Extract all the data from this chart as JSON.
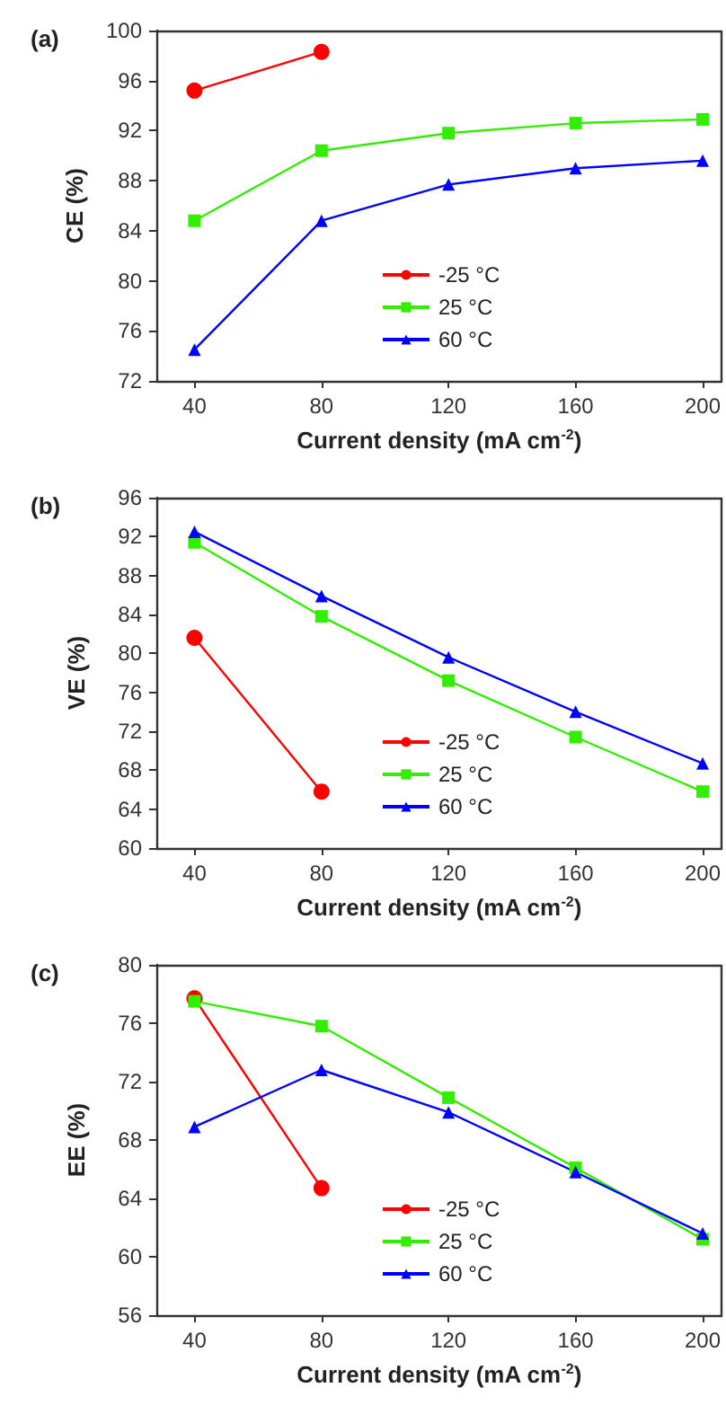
{
  "chart_data": [
    {
      "type": "line",
      "title": "(a)",
      "xlabel": "Current density (mA cm$^{-2}$)",
      "ylabel": "CE (%)",
      "x": [
        40,
        80,
        120,
        160,
        200
      ],
      "xlim": [
        28,
        206
      ],
      "xticks": [
        40,
        80,
        120,
        160,
        200
      ],
      "ylim": [
        72,
        100
      ],
      "yticks": [
        72,
        76,
        80,
        84,
        88,
        92,
        96,
        100
      ],
      "grid": false,
      "legend": "center",
      "line_style": "solid",
      "series": [
        {
          "name": "-25 °C",
          "color": "#ff0000",
          "marker": "circle",
          "values": [
            95.2,
            98.3,
            null,
            null,
            null
          ]
        },
        {
          "name": "25 °C",
          "color": "#33ee00",
          "marker": "square",
          "values": [
            84.8,
            90.4,
            91.8,
            92.6,
            92.9
          ]
        },
        {
          "name": "60 °C",
          "color": "#0000ff",
          "marker": "triangle",
          "values": [
            74.5,
            84.8,
            87.7,
            89.0,
            89.6
          ]
        }
      ]
    },
    {
      "type": "line",
      "title": "(b)",
      "xlabel": "Current density (mA cm$^{-2}$)",
      "ylabel": "VE (%)",
      "x": [
        40,
        80,
        120,
        160,
        200
      ],
      "xlim": [
        28,
        206
      ],
      "xticks": [
        40,
        80,
        120,
        160,
        200
      ],
      "ylim": [
        60,
        96
      ],
      "yticks": [
        60,
        64,
        68,
        72,
        76,
        80,
        84,
        88,
        92,
        96
      ],
      "grid": false,
      "legend": "center",
      "line_style": "solid",
      "series": [
        {
          "name": "-25 °C",
          "color": "#ff0000",
          "marker": "circle",
          "values": [
            81.6,
            65.8,
            null,
            null,
            null
          ]
        },
        {
          "name": "25 °C",
          "color": "#33ee00",
          "marker": "square",
          "values": [
            91.4,
            83.8,
            77.2,
            71.4,
            65.8
          ]
        },
        {
          "name": "60 °C",
          "color": "#0000ff",
          "marker": "triangle",
          "values": [
            92.5,
            85.9,
            79.6,
            74.0,
            68.7
          ]
        }
      ]
    },
    {
      "type": "line",
      "title": "(c)",
      "xlabel": "Current density (mA cm$^{-2}$)",
      "ylabel": "EE (%)",
      "x": [
        40,
        80,
        120,
        160,
        200
      ],
      "xlim": [
        28,
        206
      ],
      "xticks": [
        40,
        80,
        120,
        160,
        200
      ],
      "ylim": [
        56,
        80
      ],
      "yticks": [
        56,
        60,
        64,
        68,
        72,
        76,
        80
      ],
      "grid": false,
      "legend": "center",
      "line_style": "solid",
      "series": [
        {
          "name": "-25 °C",
          "color": "#ff0000",
          "marker": "circle",
          "values": [
            77.7,
            64.7,
            null,
            null,
            null
          ]
        },
        {
          "name": "25 °C",
          "color": "#33ee00",
          "marker": "square",
          "values": [
            77.5,
            75.8,
            70.9,
            66.1,
            61.2
          ]
        },
        {
          "name": "60 °C",
          "color": "#0000ff",
          "marker": "triangle",
          "values": [
            68.9,
            72.8,
            69.9,
            65.8,
            61.6
          ]
        }
      ]
    }
  ]
}
